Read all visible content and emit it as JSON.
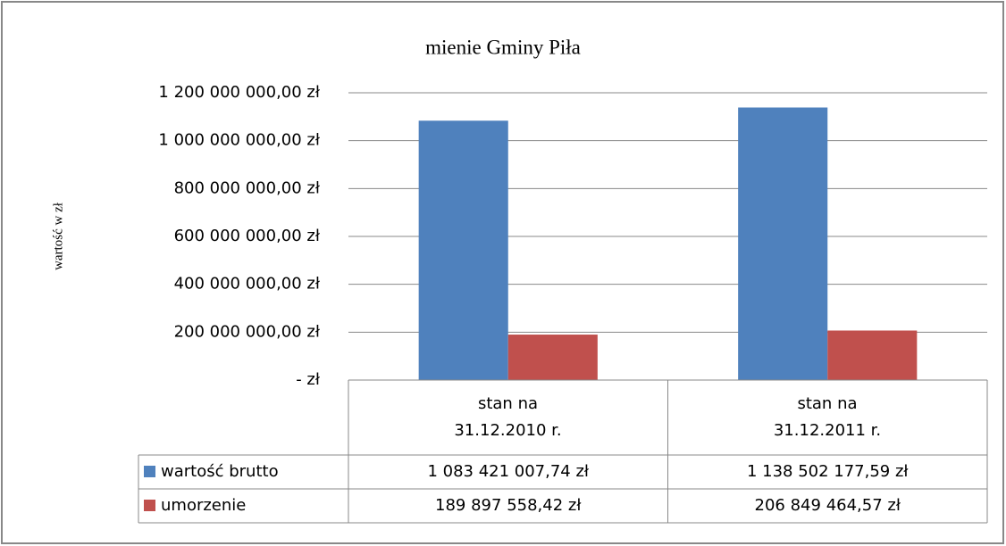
{
  "chart_data": {
    "type": "bar",
    "title": "mienie Gminy Piła",
    "y_label": "wartość w zł",
    "categories": [
      "stan na\n31.12.2010 r.",
      "stan na\n31.12.2011 r."
    ],
    "series": [
      {
        "name": "wartość brutto",
        "color": "#4f81bd",
        "values": [
          1083421007.74,
          1138502177.59
        ],
        "value_labels": [
          "1 083 421 007,74 zł",
          "1 138 502 177,59 zł"
        ]
      },
      {
        "name": "umorzenie",
        "color": "#c0504d",
        "values": [
          189897558.42,
          206849464.57
        ],
        "value_labels": [
          "189 897 558,42 zł",
          "206 849 464,57 zł"
        ]
      }
    ],
    "ylim": [
      0,
      1200000000
    ],
    "yticks": [
      {
        "value": 0,
        "label": "-   zł"
      },
      {
        "value": 200000000,
        "label": "200 000 000,00 zł"
      },
      {
        "value": 400000000,
        "label": "400 000 000,00 zł"
      },
      {
        "value": 600000000,
        "label": "600 000 000,00 zł"
      },
      {
        "value": 800000000,
        "label": "800 000 000,00 zł"
      },
      {
        "value": 1000000000,
        "label": "1 000 000 000,00 zł"
      },
      {
        "value": 1200000000,
        "label": "1 200 000 000,00 zł"
      }
    ],
    "grid": true,
    "legend": "table"
  }
}
